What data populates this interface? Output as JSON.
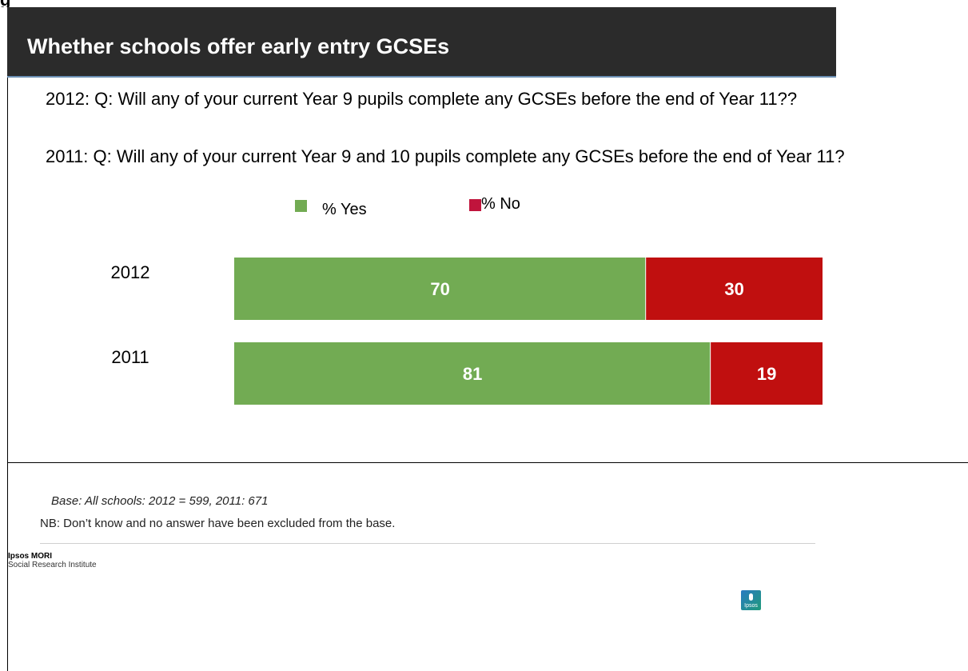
{
  "corner_text": "g",
  "title": "Whether schools offer early entry GCSEs",
  "questions": [
    "2012: Q: Will any of your current Year 9 pupils complete any GCSEs before the end of Year 11??",
    "2011: Q: Will any of your current Year 9 and 10 pupils complete any GCSEs before the end of Year 11?"
  ],
  "legend": {
    "yes": "% Yes",
    "no": "% No"
  },
  "chart_data": {
    "type": "bar",
    "orientation": "horizontal",
    "stacked": true,
    "categories": [
      "2012",
      "2011"
    ],
    "series": [
      {
        "name": "% Yes",
        "values": [
          70,
          81
        ],
        "color": "#72ab53"
      },
      {
        "name": "% No",
        "values": [
          30,
          19
        ],
        "color": "#c00f0f"
      }
    ],
    "xlim": [
      0,
      100
    ],
    "grid": false,
    "legend_position": "top"
  },
  "footer": {
    "base": "Base: All schools: 2012 = 599, 2011: 671",
    "nb": "NB: Don’t know and no answer have been excluded from the base.",
    "brand": "Ipsos MORI",
    "brand_sub": "Social Research Institute",
    "logo_text": "Ipsos"
  }
}
